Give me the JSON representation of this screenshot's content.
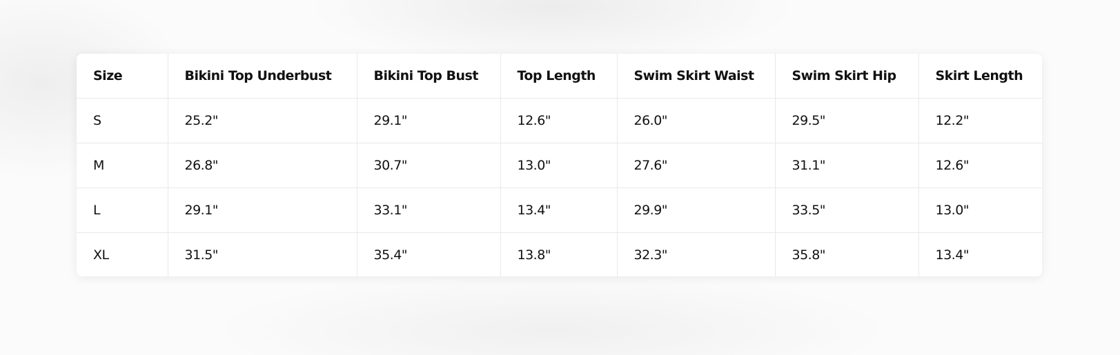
{
  "size_chart": {
    "headers": [
      "Size",
      "Bikini Top Underbust",
      "Bikini Top Bust",
      "Top Length",
      "Swim Skirt Waist",
      "Swim Skirt Hip",
      "Skirt Length"
    ],
    "rows": [
      [
        "S",
        "25.2\"",
        "29.1\"",
        "12.6\"",
        "26.0\"",
        "29.5\"",
        "12.2\""
      ],
      [
        "M",
        "26.8\"",
        "30.7\"",
        "13.0\"",
        "27.6\"",
        "31.1\"",
        "12.6\""
      ],
      [
        "L",
        "29.1\"",
        "33.1\"",
        "13.4\"",
        "29.9\"",
        "33.5\"",
        "13.0\""
      ],
      [
        "XL",
        "31.5\"",
        "35.4\"",
        "13.8\"",
        "32.3\"",
        "35.8\"",
        "13.4\""
      ]
    ]
  }
}
